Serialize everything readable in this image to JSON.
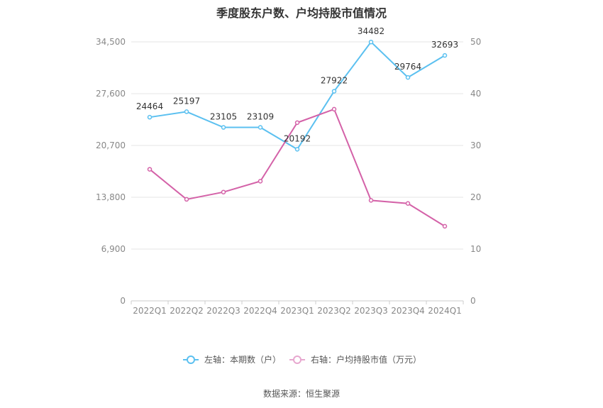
{
  "chart_data": {
    "type": "line",
    "title": "季度股东户数、户均持股市值情况",
    "categories": [
      "2022Q1",
      "2022Q2",
      "2022Q3",
      "2022Q4",
      "2023Q1",
      "2023Q2",
      "2023Q3",
      "2023Q4",
      "2024Q1"
    ],
    "series": [
      {
        "name": "左轴：本期数（户）",
        "axis": "left",
        "color": "#5bc0f0",
        "values": [
          24464,
          25197,
          23105,
          23109,
          20192,
          27922,
          34482,
          29764,
          32693
        ],
        "data_labels": [
          "24464",
          "25197",
          "23105",
          "23109",
          "20192",
          "27922",
          "34482",
          "29764",
          "32693"
        ]
      },
      {
        "name": "右轴：户均持股市值（万元）",
        "axis": "right",
        "color": "#d462a8",
        "values": [
          25.4,
          19.6,
          21.0,
          23.1,
          34.4,
          37.0,
          19.4,
          18.8,
          14.4
        ]
      }
    ],
    "y_left": {
      "min": 0,
      "max": 34500,
      "ticks": [
        0,
        6900,
        13800,
        20700,
        27600,
        34500
      ],
      "tick_labels": [
        "0",
        "6,900",
        "13,800",
        "20,700",
        "27,600",
        "34,500"
      ]
    },
    "y_right": {
      "min": 0,
      "max": 50,
      "ticks": [
        0,
        10,
        20,
        30,
        40,
        50
      ],
      "tick_labels": [
        "0",
        "10",
        "20",
        "30",
        "40",
        "50"
      ]
    },
    "grid": true,
    "legend_position": "bottom"
  },
  "source_text": "数据来源：恒生聚源"
}
